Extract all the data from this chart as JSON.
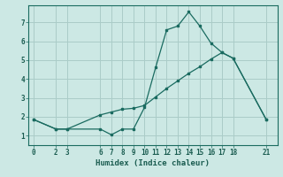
{
  "xlabel": "Humidex (Indice chaleur)",
  "ylabel": "",
  "bg_color": "#cce8e4",
  "grid_color": "#aaccc8",
  "line_color": "#1a6b60",
  "xticks": [
    0,
    2,
    3,
    6,
    7,
    8,
    9,
    10,
    11,
    12,
    13,
    14,
    15,
    16,
    17,
    18,
    21
  ],
  "yticks": [
    1,
    2,
    3,
    4,
    5,
    6,
    7
  ],
  "xlim": [
    -0.5,
    22
  ],
  "ylim": [
    0.5,
    7.9
  ],
  "line1_x": [
    0,
    2,
    3,
    6,
    7,
    8,
    9,
    10,
    11,
    12,
    13,
    14,
    15,
    16,
    17,
    18,
    21
  ],
  "line1_y": [
    1.85,
    1.35,
    1.35,
    1.35,
    1.05,
    1.35,
    1.35,
    2.5,
    4.6,
    6.6,
    6.8,
    7.55,
    6.8,
    5.9,
    5.4,
    5.1,
    1.85
  ],
  "line2_x": [
    0,
    2,
    3,
    6,
    7,
    8,
    9,
    10,
    11,
    12,
    13,
    14,
    15,
    16,
    17,
    18,
    21
  ],
  "line2_y": [
    1.85,
    1.35,
    1.35,
    2.1,
    2.25,
    2.4,
    2.45,
    2.6,
    3.05,
    3.5,
    3.9,
    4.3,
    4.65,
    5.05,
    5.4,
    5.1,
    1.85
  ],
  "font_color": "#1a5c50",
  "tick_fontsize": 5.5,
  "label_fontsize": 6.5
}
